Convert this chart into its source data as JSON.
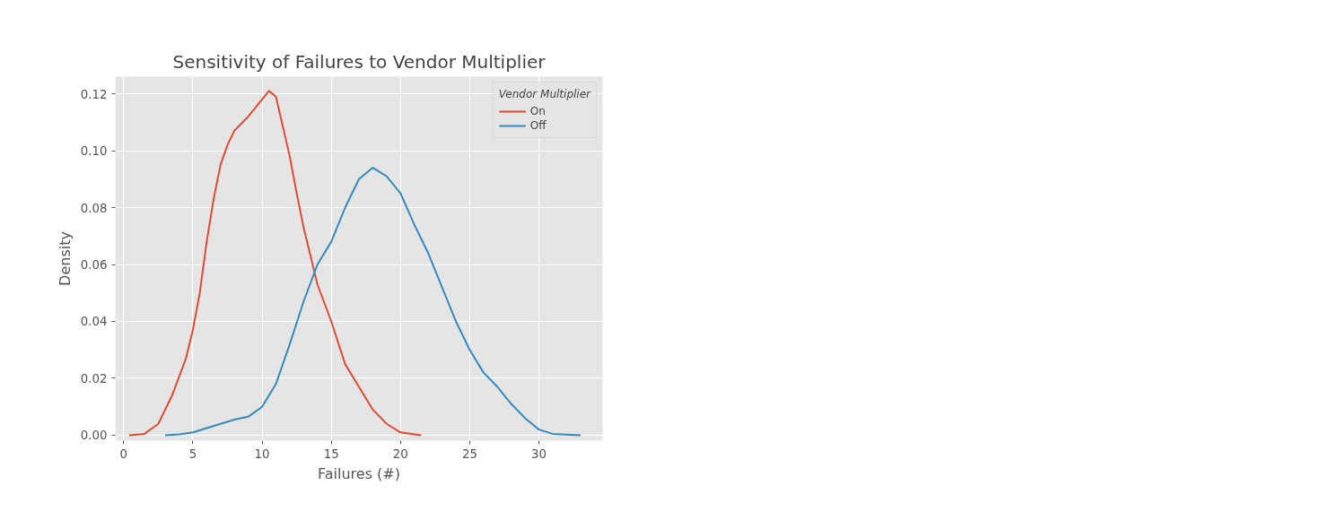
{
  "chart_data": {
    "type": "line",
    "title": "Sensitivity of Failures to Vendor Multiplier",
    "xlabel": "Failures (#)",
    "ylabel": "Density",
    "legend_title": "Vendor Multiplier",
    "legend": "top right",
    "grid": true,
    "xlim": [
      -0.6,
      34.6
    ],
    "xticks": [
      0,
      5,
      10,
      15,
      20,
      25,
      30
    ],
    "ylim": [
      -0.0019,
      0.126
    ],
    "yticks": [
      {
        "value": 0,
        "label": "0.00"
      },
      {
        "value": 0.02,
        "label": "0.02"
      },
      {
        "value": 0.04,
        "label": "0.04"
      },
      {
        "value": 0.06,
        "label": "0.06"
      },
      {
        "value": 0.08,
        "label": "0.08"
      },
      {
        "value": 0.1,
        "label": "0.10"
      },
      {
        "value": 0.12,
        "label": "0.12"
      }
    ],
    "series": [
      {
        "name": "On",
        "color": "#e24a33",
        "x": [
          0.4,
          1.5,
          2.5,
          3.5,
          4.5,
          5,
          5.5,
          6,
          6.5,
          7,
          7.5,
          8,
          9,
          10,
          10.5,
          11,
          12,
          12.5,
          13,
          14,
          15,
          16,
          17,
          18,
          19,
          20,
          21.5
        ],
        "values": [
          0,
          0.0005,
          0.004,
          0.014,
          0.027,
          0.037,
          0.05,
          0.068,
          0.083,
          0.095,
          0.102,
          0.107,
          0.112,
          0.118,
          0.121,
          0.119,
          0.098,
          0.085,
          0.073,
          0.053,
          0.04,
          0.025,
          0.017,
          0.009,
          0.004,
          0.001,
          0
        ]
      },
      {
        "name": "Off",
        "color": "#348abd",
        "x": [
          3,
          4,
          5,
          6,
          7,
          8,
          9,
          10,
          11,
          12,
          13,
          14,
          15,
          16,
          17,
          18,
          19,
          20,
          21,
          22,
          23,
          24,
          25,
          26,
          27,
          28,
          29,
          30,
          31,
          33
        ],
        "values": [
          0,
          0.0003,
          0.001,
          0.0025,
          0.004,
          0.0055,
          0.0065,
          0.01,
          0.018,
          0.032,
          0.047,
          0.06,
          0.068,
          0.08,
          0.09,
          0.094,
          0.091,
          0.085,
          0.074,
          0.064,
          0.052,
          0.04,
          0.03,
          0.022,
          0.017,
          0.011,
          0.006,
          0.002,
          0.0005,
          0
        ]
      }
    ]
  }
}
